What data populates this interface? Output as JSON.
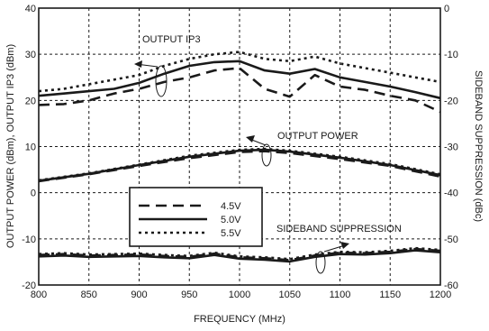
{
  "chart_data": {
    "type": "line",
    "xlabel": "FREQUENCY (MHz)",
    "ylabel_left": "OUTPUT POWER  (dBm), OUTPUT IP3 (dBm)",
    "ylabel_right": "SIDEBAND SUPPRESSION  (dBc)",
    "xlim": [
      800,
      1200
    ],
    "ylim_left": [
      -20,
      40
    ],
    "ylim_right": [
      -60,
      0
    ],
    "x_ticks": [
      "800",
      "850",
      "900",
      "950",
      "1000",
      "1050",
      "1100",
      "1150",
      "1200"
    ],
    "y_left_ticks": [
      "40",
      "30",
      "20",
      "10",
      "0",
      "-10",
      "-20"
    ],
    "y_right_ticks": [
      "0",
      "-10",
      "-20",
      "-30",
      "-40",
      "-50",
      "-60"
    ],
    "grid": true,
    "legend": {
      "placement": "center-left",
      "entries": [
        {
          "label": "4.5V",
          "dash": "dashed"
        },
        {
          "label": "5.0V",
          "dash": "solid"
        },
        {
          "label": "5.5V",
          "dash": "dotted"
        }
      ]
    },
    "annotations": [
      "OUTPUT IP3",
      "OUTPUT POWER",
      "SIDEBAND SUPPRESSION"
    ],
    "series": [
      {
        "group": "ip3",
        "axis": "left",
        "dash": "dashed",
        "x": [
          800,
          825,
          850,
          875,
          900,
          925,
          950,
          975,
          1000,
          1025,
          1050,
          1075,
          1100,
          1125,
          1150,
          1175,
          1200
        ],
        "y": [
          19,
          19.2,
          20,
          21.5,
          22.5,
          24,
          25,
          26.5,
          27,
          22.5,
          20.8,
          25.5,
          23,
          22.3,
          21,
          20,
          17.5
        ]
      },
      {
        "group": "ip3",
        "axis": "left",
        "dash": "solid",
        "x": [
          800,
          825,
          850,
          875,
          900,
          925,
          950,
          975,
          1000,
          1025,
          1050,
          1075,
          1100,
          1125,
          1150,
          1175,
          1200
        ],
        "y": [
          21,
          21.5,
          22,
          22.5,
          23.8,
          25.8,
          27.5,
          28.3,
          28.5,
          26.5,
          25.8,
          26.8,
          25,
          24,
          23,
          21.8,
          20.5
        ]
      },
      {
        "group": "ip3",
        "axis": "left",
        "dash": "dotted",
        "x": [
          800,
          825,
          850,
          875,
          900,
          925,
          950,
          975,
          1000,
          1025,
          1050,
          1075,
          1100,
          1125,
          1150,
          1175,
          1200
        ],
        "y": [
          22,
          22.5,
          23.5,
          24.5,
          25.5,
          27.5,
          29,
          30,
          30.5,
          29,
          28.5,
          29.5,
          28,
          27,
          26,
          25,
          24
        ]
      },
      {
        "group": "pout",
        "axis": "left",
        "dash": "dashed",
        "x": [
          800,
          850,
          900,
          950,
          1000,
          1025,
          1050,
          1100,
          1150,
          1200
        ],
        "y": [
          2.5,
          4,
          5.8,
          7.5,
          8.8,
          9,
          8.6,
          7.3,
          5.8,
          3.5
        ]
      },
      {
        "group": "pout",
        "axis": "left",
        "dash": "solid",
        "x": [
          800,
          850,
          900,
          950,
          1000,
          1025,
          1050,
          1100,
          1150,
          1200
        ],
        "y": [
          2.6,
          4.1,
          6,
          7.8,
          9.1,
          9.3,
          8.9,
          7.6,
          6,
          3.8
        ]
      },
      {
        "group": "pout",
        "axis": "left",
        "dash": "dotted",
        "x": [
          800,
          850,
          900,
          950,
          1000,
          1025,
          1050,
          1100,
          1150,
          1200
        ],
        "y": [
          2.7,
          4.2,
          6.1,
          8,
          9.3,
          9.5,
          9.1,
          7.8,
          6.2,
          4
        ]
      },
      {
        "group": "ssb",
        "axis": "right",
        "dash": "dashed",
        "x": [
          800,
          825,
          850,
          875,
          900,
          925,
          950,
          975,
          1000,
          1025,
          1050,
          1075,
          1100,
          1125,
          1150,
          1175,
          1200
        ],
        "y": [
          -53.5,
          -53.3,
          -53.6,
          -53.5,
          -53.4,
          -53.7,
          -53.9,
          -53.2,
          -54,
          -54.2,
          -54.6,
          -53.6,
          -53,
          -53.1,
          -52.8,
          -52.2,
          -52.6
        ]
      },
      {
        "group": "ssb",
        "axis": "right",
        "dash": "solid",
        "x": [
          800,
          825,
          850,
          875,
          900,
          925,
          950,
          975,
          1000,
          1025,
          1050,
          1075,
          1100,
          1125,
          1150,
          1175,
          1200
        ],
        "y": [
          -53.8,
          -53.6,
          -53.9,
          -53.8,
          -53.7,
          -54,
          -54.2,
          -53.5,
          -54.3,
          -54.5,
          -54.9,
          -53.9,
          -53.3,
          -53.4,
          -53.1,
          -52.5,
          -52.9
        ]
      },
      {
        "group": "ssb",
        "axis": "right",
        "dash": "dotted",
        "x": [
          800,
          825,
          850,
          875,
          900,
          925,
          950,
          975,
          1000,
          1025,
          1050,
          1075,
          1100,
          1125,
          1150,
          1175,
          1200
        ],
        "y": [
          -53.3,
          -53.1,
          -53.4,
          -53.3,
          -53.2,
          -53.5,
          -53.7,
          -53,
          -53.8,
          -54,
          -54.4,
          -53.4,
          -52.8,
          -52.9,
          -52.6,
          -52,
          -52.4
        ]
      }
    ]
  }
}
